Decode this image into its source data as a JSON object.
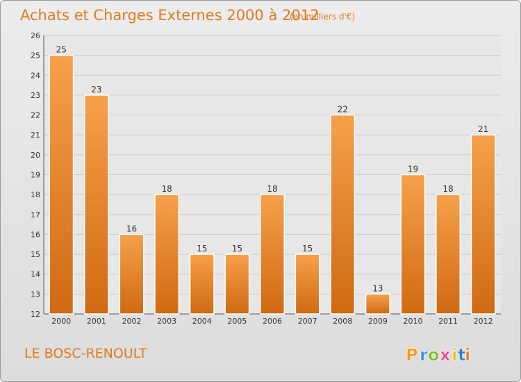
{
  "chart_data": {
    "type": "bar",
    "title": "Achats et Charges Externes 2000 à 2012",
    "unit_note": "(en milliers d'€)",
    "categories": [
      "2000",
      "2001",
      "2002",
      "2003",
      "2004",
      "2005",
      "2006",
      "2007",
      "2008",
      "2009",
      "2010",
      "2011",
      "2012"
    ],
    "values": [
      25,
      23,
      16,
      18,
      15,
      15,
      18,
      15,
      22,
      13,
      19,
      18,
      21
    ],
    "ylim": [
      12,
      26
    ],
    "yticks": [
      12,
      13,
      14,
      15,
      16,
      17,
      18,
      19,
      20,
      21,
      22,
      23,
      24,
      25,
      26
    ],
    "grid": true,
    "bar_color": "#e8892e",
    "xlabel": "",
    "ylabel": ""
  },
  "commune_name": "LE BOSC-RENOULT",
  "brand": {
    "letters": [
      "P",
      "r",
      "o",
      "x",
      "i",
      "t",
      "i"
    ],
    "colors": [
      "#f39c12",
      "#3a8fd6",
      "#7dbb2b",
      "#e84a8f",
      "#f1c40f",
      "#2e7bd0",
      "#e67e22"
    ]
  }
}
